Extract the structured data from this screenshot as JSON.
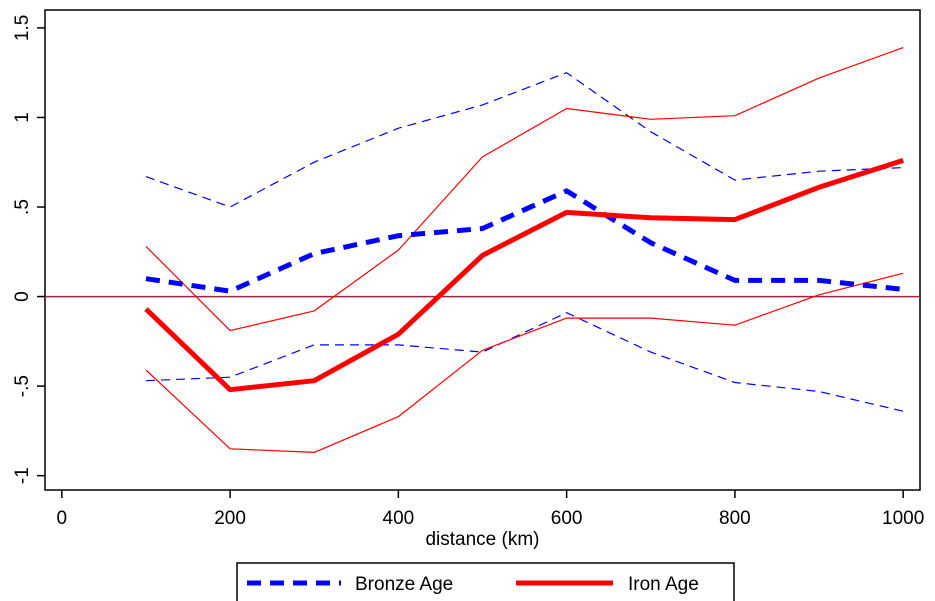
{
  "chart_data": {
    "type": "line",
    "xlabel": "distance (km)",
    "ylabel": "",
    "xlim": [
      -20,
      1020
    ],
    "ylim": [
      -1.08,
      1.6
    ],
    "x_ticks": [
      0,
      200,
      400,
      600,
      800,
      1000
    ],
    "y_ticks": [
      -1,
      -0.5,
      0,
      0.5,
      1,
      1.5
    ],
    "y_tick_labels": [
      "-1",
      "-.5",
      "0",
      ".5",
      "1",
      "1.5"
    ],
    "reference_line": {
      "y": 0,
      "color": "#a0203f"
    },
    "x": [
      100,
      200,
      300,
      400,
      500,
      600,
      700,
      800,
      900,
      1000
    ],
    "series": [
      {
        "name": "Bronze Age",
        "role": "estimate",
        "color": "#0000ff",
        "style": "dashed",
        "values": [
          0.1,
          0.03,
          0.24,
          0.34,
          0.38,
          0.59,
          0.3,
          0.09,
          0.09,
          0.04
        ]
      },
      {
        "name": "",
        "role": "upper-ci",
        "color": "#0000ff",
        "style": "dashed-thin",
        "values": [
          0.67,
          0.5,
          0.75,
          0.94,
          1.07,
          1.25,
          0.92,
          0.65,
          0.7,
          0.72
        ]
      },
      {
        "name": "",
        "role": "lower-ci",
        "color": "#0000ff",
        "style": "dashed-thin",
        "values": [
          -0.47,
          -0.45,
          -0.27,
          -0.27,
          -0.31,
          -0.09,
          -0.31,
          -0.48,
          -0.53,
          -0.64
        ]
      },
      {
        "name": "Iron Age",
        "role": "estimate",
        "color": "#ff0000",
        "style": "solid",
        "values": [
          -0.07,
          -0.52,
          -0.47,
          -0.21,
          0.23,
          0.47,
          0.44,
          0.43,
          0.61,
          0.76
        ]
      },
      {
        "name": "",
        "role": "upper-ci",
        "color": "#ff0000",
        "style": "solid-thin",
        "values": [
          0.28,
          -0.19,
          -0.08,
          0.26,
          0.78,
          1.05,
          0.99,
          1.01,
          1.22,
          1.39
        ]
      },
      {
        "name": "",
        "role": "lower-ci",
        "color": "#ff0000",
        "style": "solid-thin",
        "values": [
          -0.41,
          -0.85,
          -0.87,
          -0.67,
          -0.3,
          -0.12,
          -0.12,
          -0.16,
          0.01,
          0.13
        ]
      }
    ],
    "legend": {
      "placement": "bottom",
      "entries": [
        {
          "label": "Bronze Age",
          "color": "#0000ff",
          "style": "dashed"
        },
        {
          "label": "Iron Age",
          "color": "#ff0000",
          "style": "solid"
        }
      ]
    },
    "grid": false
  }
}
